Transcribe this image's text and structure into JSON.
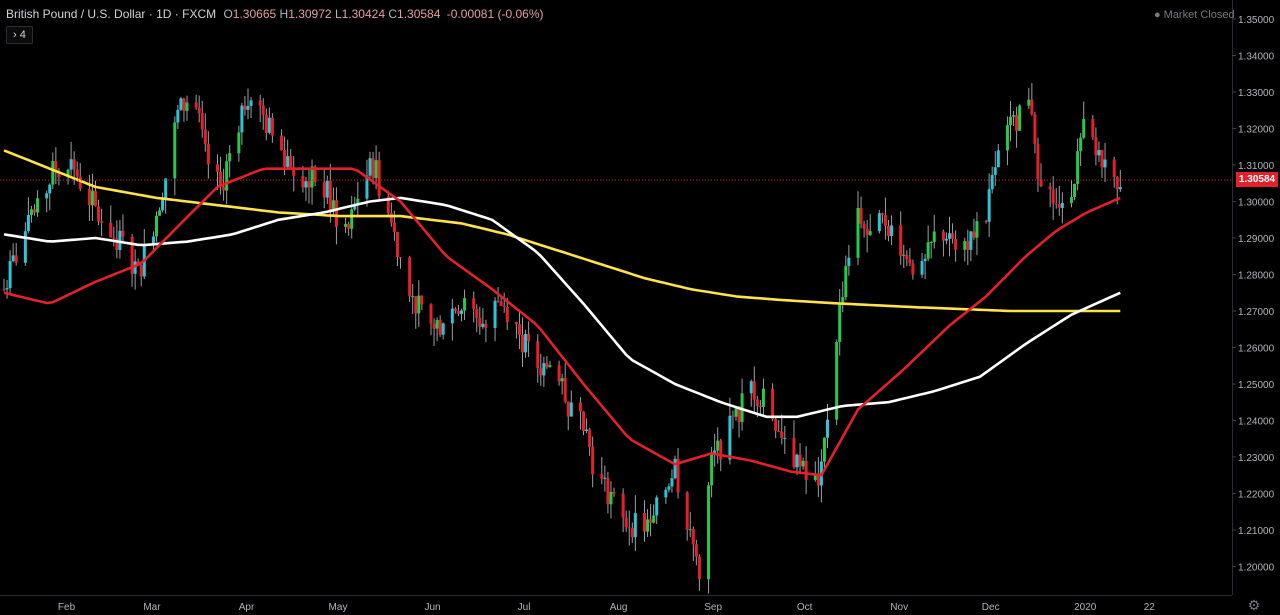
{
  "legend": {
    "symbol": "British Pound / U.S. Dollar",
    "interval": "1D",
    "exchange": "FXCM",
    "open_label": "O",
    "open": "1.30665",
    "high_label": "H",
    "high": "1.30972",
    "low_label": "L",
    "low": "1.30424",
    "close_label": "C",
    "close": "1.30584",
    "change": "-0.00081 (-0.06%)"
  },
  "indicator_toggle": {
    "arrow": "›",
    "count": "4"
  },
  "market_status": "Market Closed",
  "last_price_label": "1.30584",
  "icons": {
    "settings": "gear-icon",
    "toggle": "chevron-right-icon"
  },
  "colors": {
    "up": "#26c94a",
    "down": "#e3212b",
    "up_alt": "#2ec4d6",
    "ma_fast": "#e3212b",
    "ma_mid": "#ffffff",
    "ma_slow": "#ffe34d",
    "background": "#000000",
    "last_price_line": "#e3212b"
  },
  "chart_data": {
    "type": "candlestick",
    "x_axis_labels": [
      "Feb",
      "Mar",
      "Apr",
      "May",
      "Jun",
      "Jul",
      "Aug",
      "Sep",
      "Oct",
      "Nov",
      "Dec",
      "2020",
      "22"
    ],
    "y_axis_labels": [
      "1.35000",
      "1.34000",
      "1.33000",
      "1.32000",
      "1.31000",
      "1.30000",
      "1.29000",
      "1.28000",
      "1.27000",
      "1.26000",
      "1.25000",
      "1.24000",
      "1.23000",
      "1.22000",
      "1.21000",
      "1.20000"
    ],
    "ylim": [
      1.1935,
      1.3525
    ],
    "last_price": 1.30584,
    "price_path": [
      [
        0,
        1.276
      ],
      [
        6,
        1.29
      ],
      [
        11,
        1.297
      ],
      [
        16,
        1.308
      ],
      [
        21,
        1.312
      ],
      [
        26,
        1.304
      ],
      [
        31,
        1.296
      ],
      [
        36,
        1.291
      ],
      [
        41,
        1.286
      ],
      [
        44,
        1.28
      ],
      [
        49,
        1.294
      ],
      [
        53,
        1.307
      ],
      [
        57,
        1.324
      ],
      [
        62,
        1.33
      ],
      [
        66,
        1.312
      ],
      [
        71,
        1.303
      ],
      [
        76,
        1.32
      ],
      [
        80,
        1.33
      ],
      [
        85,
        1.323
      ],
      [
        90,
        1.315
      ],
      [
        95,
        1.31
      ],
      [
        100,
        1.306
      ],
      [
        104,
        1.306
      ],
      [
        109,
        1.296
      ],
      [
        113,
        1.292
      ],
      [
        117,
        1.305
      ],
      [
        121,
        1.31
      ],
      [
        125,
        1.3
      ],
      [
        130,
        1.285
      ],
      [
        135,
        1.272
      ],
      [
        139,
        1.265
      ],
      [
        144,
        1.268
      ],
      [
        149,
        1.272
      ],
      [
        153,
        1.27
      ],
      [
        158,
        1.266
      ],
      [
        162,
        1.273
      ],
      [
        166,
        1.27
      ],
      [
        170,
        1.262
      ],
      [
        174,
        1.255
      ],
      [
        179,
        1.255
      ],
      [
        183,
        1.248
      ],
      [
        186,
        1.242
      ],
      [
        189,
        1.245
      ],
      [
        194,
        1.225
      ],
      [
        198,
        1.22
      ],
      [
        203,
        1.212
      ],
      [
        207,
        1.212
      ],
      [
        212,
        1.21
      ],
      [
        216,
        1.22
      ],
      [
        220,
        1.228
      ],
      [
        224,
        1.21
      ],
      [
        228,
        1.2
      ],
      [
        232,
        1.228
      ],
      [
        236,
        1.235
      ],
      [
        240,
        1.24
      ],
      [
        244,
        1.25
      ],
      [
        247,
        1.248
      ],
      [
        251,
        1.243
      ],
      [
        256,
        1.236
      ],
      [
        260,
        1.228
      ],
      [
        265,
        1.222
      ],
      [
        268,
        1.225
      ],
      [
        272,
        1.258
      ],
      [
        276,
        1.283
      ],
      [
        280,
        1.296
      ],
      [
        284,
        1.29
      ],
      [
        289,
        1.295
      ],
      [
        293,
        1.29
      ],
      [
        297,
        1.285
      ],
      [
        301,
        1.28
      ],
      [
        305,
        1.29
      ],
      [
        309,
        1.292
      ],
      [
        314,
        1.288
      ],
      [
        318,
        1.292
      ],
      [
        322,
        1.295
      ],
      [
        325,
        1.31
      ],
      [
        329,
        1.318
      ],
      [
        333,
        1.325
      ],
      [
        337,
        1.326
      ],
      [
        339,
        1.31
      ],
      [
        343,
        1.302
      ],
      [
        347,
        1.296
      ],
      [
        351,
        1.308
      ],
      [
        355,
        1.323
      ],
      [
        358,
        1.312
      ],
      [
        362,
        1.308
      ],
      [
        366,
        1.306
      ]
    ],
    "ma_fast": [
      [
        0,
        1.275
      ],
      [
        15,
        1.272
      ],
      [
        30,
        1.278
      ],
      [
        45,
        1.283
      ],
      [
        58,
        1.294
      ],
      [
        70,
        1.304
      ],
      [
        85,
        1.309
      ],
      [
        100,
        1.309
      ],
      [
        115,
        1.309
      ],
      [
        130,
        1.3
      ],
      [
        145,
        1.285
      ],
      [
        160,
        1.276
      ],
      [
        175,
        1.266
      ],
      [
        190,
        1.25
      ],
      [
        205,
        1.235
      ],
      [
        220,
        1.228
      ],
      [
        232,
        1.231
      ],
      [
        245,
        1.229
      ],
      [
        258,
        1.226
      ],
      [
        268,
        1.225
      ],
      [
        280,
        1.243
      ],
      [
        295,
        1.254
      ],
      [
        310,
        1.266
      ],
      [
        322,
        1.274
      ],
      [
        335,
        1.285
      ],
      [
        345,
        1.292
      ],
      [
        355,
        1.297
      ],
      [
        366,
        1.301
      ]
    ],
    "ma_mid": [
      [
        0,
        1.291
      ],
      [
        15,
        1.289
      ],
      [
        30,
        1.29
      ],
      [
        45,
        1.288
      ],
      [
        60,
        1.289
      ],
      [
        75,
        1.291
      ],
      [
        90,
        1.295
      ],
      [
        105,
        1.297
      ],
      [
        120,
        1.3
      ],
      [
        130,
        1.301
      ],
      [
        145,
        1.299
      ],
      [
        160,
        1.295
      ],
      [
        175,
        1.286
      ],
      [
        190,
        1.272
      ],
      [
        205,
        1.257
      ],
      [
        220,
        1.25
      ],
      [
        235,
        1.245
      ],
      [
        250,
        1.241
      ],
      [
        260,
        1.241
      ],
      [
        275,
        1.244
      ],
      [
        290,
        1.245
      ],
      [
        305,
        1.248
      ],
      [
        320,
        1.252
      ],
      [
        335,
        1.261
      ],
      [
        350,
        1.269
      ],
      [
        366,
        1.275
      ]
    ],
    "ma_slow": [
      [
        0,
        1.314
      ],
      [
        15,
        1.309
      ],
      [
        30,
        1.304
      ],
      [
        50,
        1.301
      ],
      [
        70,
        1.299
      ],
      [
        90,
        1.297
      ],
      [
        110,
        1.296
      ],
      [
        130,
        1.296
      ],
      [
        150,
        1.294
      ],
      [
        165,
        1.291
      ],
      [
        180,
        1.287
      ],
      [
        195,
        1.283
      ],
      [
        210,
        1.279
      ],
      [
        225,
        1.276
      ],
      [
        240,
        1.274
      ],
      [
        255,
        1.273
      ],
      [
        275,
        1.272
      ],
      [
        300,
        1.271
      ],
      [
        330,
        1.27
      ],
      [
        345,
        1.27
      ],
      [
        366,
        1.27
      ]
    ]
  }
}
